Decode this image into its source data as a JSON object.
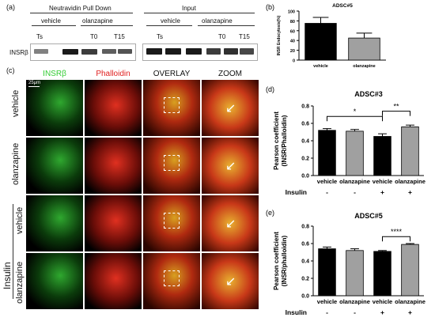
{
  "panel_a": {
    "tag": "(a)",
    "group_pulldown": "Neutravidin Pull Down",
    "group_input": "Input",
    "vehicle_label": "vehicle",
    "olanzapine_label": "olanzapine",
    "time_labels": [
      "Ts",
      "T0",
      "T15",
      "Ts",
      "T0",
      "T15"
    ],
    "row_label": "INSRβ"
  },
  "panel_c": {
    "tag": "(c)",
    "columns": [
      {
        "label": "INSRβ",
        "color": "#33cc33"
      },
      {
        "label": "Phalloidin",
        "color": "#e02020"
      },
      {
        "label": "OVERLAY",
        "color": "#111111"
      },
      {
        "label": "ZOOM",
        "color": "#111111"
      }
    ],
    "rows": [
      "vehicle",
      "olanzapine",
      "vehicle",
      "olanzapine"
    ],
    "insulin_label": "Insulin",
    "scale_label": "25μm"
  },
  "chart_data": [
    {
      "panel": "(b)",
      "type": "bar",
      "title": "ADSC#5",
      "ylabel": "INSR Endocytosis(%)",
      "categories": [
        "vehicle",
        "olanzapine"
      ],
      "values": [
        75,
        45
      ],
      "errors": [
        12,
        10
      ],
      "colors": [
        "#000000",
        "#a0a0a0"
      ],
      "ylim": [
        0,
        100
      ],
      "yticks": [
        "0",
        "20",
        "40",
        "60",
        "80",
        "100"
      ]
    },
    {
      "panel": "(d)",
      "type": "bar",
      "title": "ADSC#3",
      "ylabel": "Pearson coefficient (INSR/Phalloidin)",
      "categories": [
        "vehicle",
        "olanzapine",
        "vehicle",
        "olanzapine"
      ],
      "insulin_row": [
        "-",
        "-",
        "+",
        "+"
      ],
      "insulin_label": "Insulin",
      "values": [
        0.52,
        0.51,
        0.45,
        0.56
      ],
      "errors": [
        0.02,
        0.02,
        0.03,
        0.02
      ],
      "colors": [
        "#000000",
        "#a0a0a0",
        "#000000",
        "#a0a0a0"
      ],
      "ylim": [
        0,
        0.8
      ],
      "yticks": [
        "0.0",
        "0.2",
        "0.4",
        "0.6",
        "0.8"
      ],
      "significance": [
        {
          "from": 0,
          "to": 2,
          "label": "*"
        },
        {
          "from": 2,
          "to": 3,
          "label": "**"
        }
      ]
    },
    {
      "panel": "(e)",
      "type": "bar",
      "title": "ADSC#5",
      "ylabel": "Pearson coefficient (INSR/phalloidin)",
      "categories": [
        "vehicle",
        "olanzapine",
        "vehicle",
        "olanzapine"
      ],
      "insulin_row": [
        "-",
        "-",
        "+",
        "+"
      ],
      "insulin_label": "Insulin",
      "values": [
        0.54,
        0.52,
        0.51,
        0.59
      ],
      "errors": [
        0.02,
        0.02,
        0.01,
        0.01
      ],
      "colors": [
        "#000000",
        "#a0a0a0",
        "#000000",
        "#a0a0a0"
      ],
      "ylim": [
        0,
        0.8
      ],
      "yticks": [
        "0.0",
        "0.2",
        "0.4",
        "0.6",
        "0.8"
      ],
      "significance": [
        {
          "from": 2,
          "to": 3,
          "label": "****"
        }
      ]
    }
  ]
}
